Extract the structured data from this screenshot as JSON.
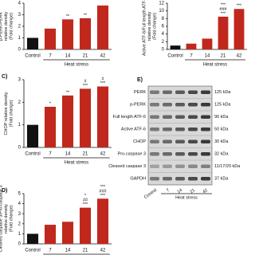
{
  "chart_data": [
    {
      "type": "bar",
      "ylabel": [
        "p-PERK/PERK",
        "relative density",
        "(Fold change)"
      ],
      "categories": [
        "Control",
        "7",
        "14",
        "21",
        "42"
      ],
      "xlabel": "Heat stress",
      "values": [
        1.0,
        1.8,
        2.6,
        2.7,
        3.8
      ],
      "colors": [
        "#111111",
        "#c0281e",
        "#c0281e",
        "#c0281e",
        "#c0281e"
      ],
      "ylim": [
        0,
        4
      ],
      "yticks": [
        0,
        1,
        2,
        3,
        4
      ],
      "annotations": [
        null,
        null,
        [
          "**"
        ],
        [
          "**"
        ],
        null
      ]
    },
    {
      "type": "bar",
      "ylabel": [
        "Active ATF-6/Full length ATF-6",
        "relative density",
        "(Fold change)"
      ],
      "categories": [
        "Control",
        "7",
        "14",
        "21",
        "42"
      ],
      "xlabel": "Heat stress",
      "values": [
        1.0,
        1.5,
        2.8,
        8.5,
        10.5
      ],
      "colors": [
        "#111111",
        "#c0281e",
        "#c0281e",
        "#c0281e",
        "#c0281e"
      ],
      "ylim": [
        0,
        12
      ],
      "yticks": [
        0,
        2,
        4,
        6,
        8,
        10,
        12
      ],
      "annotations": [
        null,
        null,
        null,
        [
          "***",
          "###",
          "***"
        ],
        [
          "***"
        ]
      ]
    },
    {
      "type": "bar",
      "panel_label": "C)",
      "ylabel": [
        "CHOP relative density",
        "(Fold change)"
      ],
      "categories": [
        "Control",
        "7",
        "14",
        "21",
        "42"
      ],
      "xlabel": "Heat stress",
      "values": [
        1.0,
        1.8,
        2.3,
        2.6,
        2.7
      ],
      "colors": [
        "#111111",
        "#c0281e",
        "#c0281e",
        "#c0281e",
        "#c0281e"
      ],
      "ylim": [
        0,
        3
      ],
      "yticks": [
        0,
        1,
        2,
        3
      ],
      "annotations": [
        null,
        [
          "*"
        ],
        [
          "**"
        ],
        [
          "#",
          "***"
        ],
        [
          "#",
          "***"
        ]
      ]
    },
    {
      "type": "bar",
      "panel_label": "D)",
      "ylabel": [
        "Cleaved caspase 3/Pro-caspase 3",
        "relative density",
        "(Fold change)"
      ],
      "categories": [
        "Control",
        "7",
        "14",
        "21",
        "42"
      ],
      "xlabel": "Heat stress",
      "values": [
        1.0,
        1.9,
        2.2,
        3.6,
        4.5
      ],
      "colors": [
        "#111111",
        "#c0281e",
        "#c0281e",
        "#c0281e",
        "#c0281e"
      ],
      "ylim": [
        0,
        5
      ],
      "yticks": [
        0,
        1,
        2,
        3,
        4,
        5
      ],
      "annotations": [
        null,
        null,
        null,
        [
          "*",
          "##",
          "***"
        ],
        [
          "***",
          "###",
          "***"
        ]
      ]
    }
  ],
  "blot": {
    "panel_label": "E)",
    "rows": [
      {
        "protein": "PERK",
        "size": "125 kDa"
      },
      {
        "protein": "p-PERK",
        "size": "125 kDa"
      },
      {
        "protein": "Full length ATF-6",
        "size": "90 kDa"
      },
      {
        "protein": "Active ATF-6",
        "size": "50 kDa"
      },
      {
        "protein": "CHOP",
        "size": "30 kDa"
      },
      {
        "protein": "Pro-caspase 3",
        "size": "32 kDa"
      },
      {
        "protein": "Cleaved caspase 3",
        "size": "11/17/20 kDa"
      },
      {
        "protein": "GAPDH",
        "size": "37 kDa"
      }
    ],
    "lanes": [
      "Control",
      "7",
      "14",
      "21",
      "42"
    ],
    "group_label": "Heat stress"
  }
}
